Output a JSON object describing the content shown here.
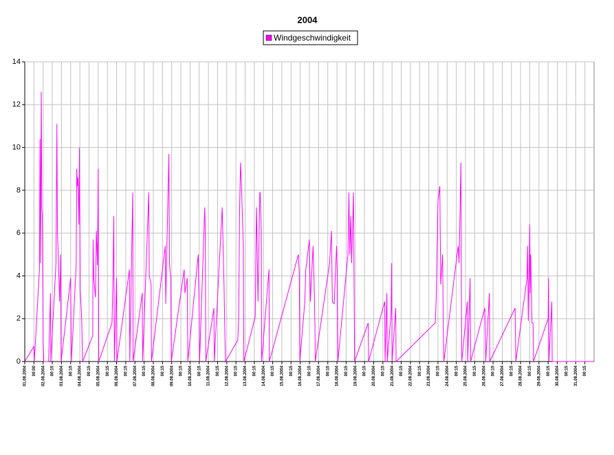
{
  "chart_data": {
    "type": "line",
    "title": "2004",
    "x": [
      0,
      0.5,
      0.52,
      0.8,
      0.83,
      0.86,
      0.9,
      0.93,
      0.96,
      1.0,
      1.04,
      1.3,
      1.4,
      1.42,
      1.7,
      1.75,
      1.78,
      1.82,
      1.86,
      1.9,
      1.95,
      1.98,
      2.5,
      2.52,
      2.54,
      2.8,
      2.83,
      2.86,
      2.9,
      2.95,
      2.98,
      3.02,
      3.1,
      3.15,
      3.7,
      3.72,
      3.76,
      3.85,
      3.9,
      3.96,
      4.0,
      4.03,
      4.75,
      4.8,
      4.85,
      4.88,
      5.0,
      5.02,
      5.7,
      5.72,
      5.88,
      5.9,
      6.4,
      6.42,
      6.65,
      6.75,
      6.78,
      6.88,
      6.9,
      7.65,
      7.68,
      7.72,
      7.85,
      7.88,
      7.95,
      7.98,
      8.68,
      8.72,
      8.85,
      8.88,
      9.4,
      9.45,
      9.5,
      9.52,
      9.8,
      9.83,
      9.86,
      10.3,
      10.32,
      10.75,
      10.8,
      10.85,
      10.9,
      10.93,
      11.6,
      11.65,
      11.7,
      11.75,
      11.8,
      11.9,
      11.93,
      12.55,
      12.6,
      12.62,
      12.7,
      12.8,
      12.82,
      12.88,
      12.9,
      13.3,
      13.32,
      14.9,
      14.95,
      14.98,
      15.25,
      15.3,
      15.35,
      15.5,
      15.55,
      15.7,
      15.75,
      15.8,
      15.82,
      16.6,
      16.7,
      16.75,
      16.85,
      16.98,
      17.02,
      17.05,
      17.6,
      17.65,
      17.7,
      17.75,
      17.8,
      17.9,
      17.93,
      17.96,
      18.7,
      18.72,
      19.6,
      19.62,
      19.72,
      19.74,
      19.95,
      19.98,
      20.0,
      20.2,
      20.22,
      22.35,
      22.4,
      22.5,
      22.6,
      22.65,
      22.75,
      22.8,
      22.82,
      23.6,
      23.65,
      23.75,
      23.78,
      23.8,
      24.1,
      24.12,
      24.25,
      24.28,
      25.05,
      25.08,
      25.1,
      25.3,
      25.32,
      26.7,
      26.72,
      26.74,
      27.35,
      27.38,
      27.42,
      27.5,
      27.52,
      27.55,
      27.62,
      27.68,
      27.7,
      28.5,
      28.52,
      28.54,
      28.7,
      28.72,
      31
    ],
    "series": [
      {
        "name": "Windgeschwindigkeit",
        "color": "#ff00ff",
        "values": [
          0,
          0.7,
          0,
          4.3,
          10.4,
          4.6,
          12.6,
          7.1,
          6.8,
          0.9,
          0,
          0,
          3.2,
          0,
          4.6,
          11.1,
          6.1,
          5.0,
          3.9,
          2.8,
          5.0,
          0,
          3.9,
          2.0,
          0,
          4.5,
          9.0,
          8.2,
          8.6,
          6.4,
          10.0,
          3.4,
          2.0,
          0,
          1.2,
          5.7,
          3.9,
          3.0,
          6.1,
          4.5,
          9.0,
          0,
          1.8,
          3.6,
          6.8,
          0,
          3.9,
          0,
          4.3,
          0,
          7.9,
          0,
          3.2,
          0,
          5.4,
          7.9,
          4.0,
          3.6,
          0,
          5.4,
          2.7,
          4.6,
          9.7,
          4.6,
          3.9,
          0,
          4.3,
          3.2,
          3.9,
          0,
          4.6,
          5.0,
          2.0,
          0,
          7.2,
          6.1,
          0,
          2.5,
          0,
          7.2,
          5.4,
          3.6,
          1.2,
          0,
          1.0,
          2.1,
          7.2,
          9.3,
          8.2,
          5.4,
          0,
          2.1,
          6.1,
          7.2,
          2.8,
          7.9,
          7.9,
          6.1,
          0,
          4.3,
          0,
          5.0,
          4.1,
          0,
          2.8,
          4.3,
          4.6,
          5.7,
          2.8,
          5.4,
          3.9,
          1.8,
          0,
          4.6,
          6.1,
          2.8,
          2.7,
          5.4,
          4.3,
          0,
          5.0,
          7.9,
          5.0,
          6.8,
          4.6,
          7.9,
          4.0,
          0,
          1.8,
          0,
          2.8,
          0,
          3.2,
          0,
          2.3,
          4.6,
          0,
          2.5,
          0,
          1.8,
          2.8,
          7.5,
          8.2,
          3.6,
          5.0,
          1.0,
          0,
          5.4,
          4.6,
          9.3,
          2.3,
          0,
          2.8,
          0,
          3.9,
          0,
          2.5,
          1.2,
          0,
          3.2,
          0,
          2.5,
          1.2,
          0,
          3.9,
          5.4,
          1.9,
          6.4,
          3.2,
          5.0,
          1.8,
          1.8,
          0,
          2.0,
          3.9,
          0,
          2.8,
          0,
          0
        ]
      }
    ],
    "xlim": [
      0,
      31
    ],
    "ylim": [
      0,
      14
    ],
    "yticks": [
      0,
      2,
      4,
      6,
      8,
      10,
      12,
      14
    ],
    "grid": true,
    "legend": "top",
    "xticks": [
      {
        "value": 0,
        "label": "01.08.2004"
      },
      {
        "value": 0.5,
        "label": "00:00"
      },
      {
        "value": 1,
        "label": "02.08.2004"
      },
      {
        "value": 1.5,
        "label": "00:15"
      },
      {
        "value": 2,
        "label": "03.08.2004"
      },
      {
        "value": 2.5,
        "label": "00:15"
      },
      {
        "value": 3,
        "label": "04.08.2004"
      },
      {
        "value": 3.5,
        "label": "00:15"
      },
      {
        "value": 4,
        "label": "05.08.2004"
      },
      {
        "value": 4.5,
        "label": "00:15"
      },
      {
        "value": 5,
        "label": "06.08.2004"
      },
      {
        "value": 5.5,
        "label": "00:15"
      },
      {
        "value": 6,
        "label": "07.08.2004"
      },
      {
        "value": 6.5,
        "label": "00:15"
      },
      {
        "value": 7,
        "label": "08.08.2004"
      },
      {
        "value": 7.5,
        "label": "00:15"
      },
      {
        "value": 8,
        "label": "09.08.2004"
      },
      {
        "value": 8.5,
        "label": "00:15"
      },
      {
        "value": 9,
        "label": "10.08.2004"
      },
      {
        "value": 9.5,
        "label": "00:15"
      },
      {
        "value": 10,
        "label": "11.08.2004"
      },
      {
        "value": 10.5,
        "label": "00:15"
      },
      {
        "value": 11,
        "label": "12.08.2004"
      },
      {
        "value": 11.5,
        "label": "00:15"
      },
      {
        "value": 12,
        "label": "13.08.2004"
      },
      {
        "value": 12.5,
        "label": "00:15"
      },
      {
        "value": 13,
        "label": "14.08.2004"
      },
      {
        "value": 13.5,
        "label": "00:15"
      },
      {
        "value": 14,
        "label": "15.08.2004"
      },
      {
        "value": 14.5,
        "label": "00:15"
      },
      {
        "value": 15,
        "label": "16.08.2004"
      },
      {
        "value": 15.5,
        "label": "00:15"
      },
      {
        "value": 16,
        "label": "17.08.2004"
      },
      {
        "value": 16.5,
        "label": "00:15"
      },
      {
        "value": 17,
        "label": "18.08.2004"
      },
      {
        "value": 17.5,
        "label": "00:15"
      },
      {
        "value": 18,
        "label": "19.08.2004"
      },
      {
        "value": 18.5,
        "label": "00:15"
      },
      {
        "value": 19,
        "label": "20.08.2004"
      },
      {
        "value": 19.5,
        "label": "00:15"
      },
      {
        "value": 20,
        "label": "21.08.2004"
      },
      {
        "value": 20.5,
        "label": "00:15"
      },
      {
        "value": 21,
        "label": "22.08.2004"
      },
      {
        "value": 21.5,
        "label": "00:15"
      },
      {
        "value": 22,
        "label": "23.08.2004"
      },
      {
        "value": 22.5,
        "label": "00:15"
      },
      {
        "value": 23,
        "label": "24.08.2004"
      },
      {
        "value": 23.5,
        "label": "00:15"
      },
      {
        "value": 24,
        "label": "25.08.2004"
      },
      {
        "value": 24.5,
        "label": "00:15"
      },
      {
        "value": 25,
        "label": "26.08.2004"
      },
      {
        "value": 25.5,
        "label": "00:15"
      },
      {
        "value": 26,
        "label": "27.08.2004"
      },
      {
        "value": 26.5,
        "label": "00:15"
      },
      {
        "value": 27,
        "label": "28.08.2004"
      },
      {
        "value": 27.5,
        "label": "00:15"
      },
      {
        "value": 28,
        "label": "29.08.2004"
      },
      {
        "value": 28.5,
        "label": "00:15"
      },
      {
        "value": 29,
        "label": "30.08.2004"
      },
      {
        "value": 29.5,
        "label": "00:15"
      },
      {
        "value": 30,
        "label": "31.08.2004"
      },
      {
        "value": 30.5,
        "label": "00:15"
      }
    ]
  }
}
